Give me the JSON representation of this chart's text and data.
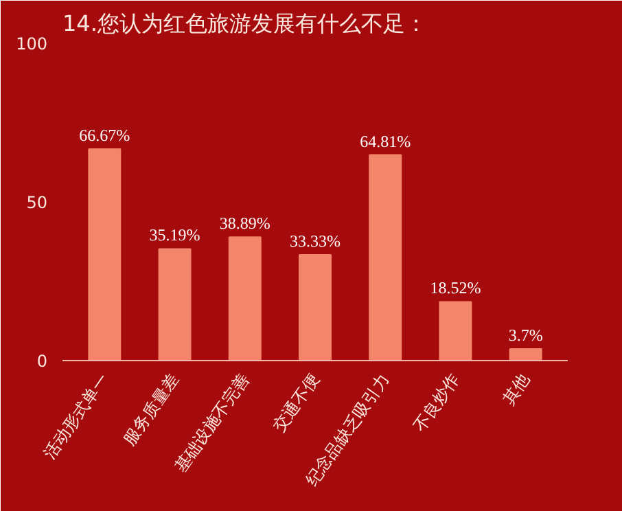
{
  "chart_data": {
    "type": "bar",
    "title": "14.您认为红色旅游发展有什么不足：",
    "categories": [
      "活动形式单一",
      "服务质量差",
      "基础设施不完善",
      "交通不便",
      "纪念品缺乏吸引力",
      "不良炒作",
      "其他"
    ],
    "values": [
      66.67,
      35.19,
      38.89,
      33.33,
      64.81,
      18.52,
      3.7
    ],
    "value_labels": [
      "66.67%",
      "35.19%",
      "38.89%",
      "33.33%",
      "64.81%",
      "18.52%",
      "3.7%"
    ],
    "color": "#f2856a",
    "ylim": [
      0,
      100
    ],
    "yticks": [
      0,
      50,
      100
    ],
    "grid": false
  }
}
